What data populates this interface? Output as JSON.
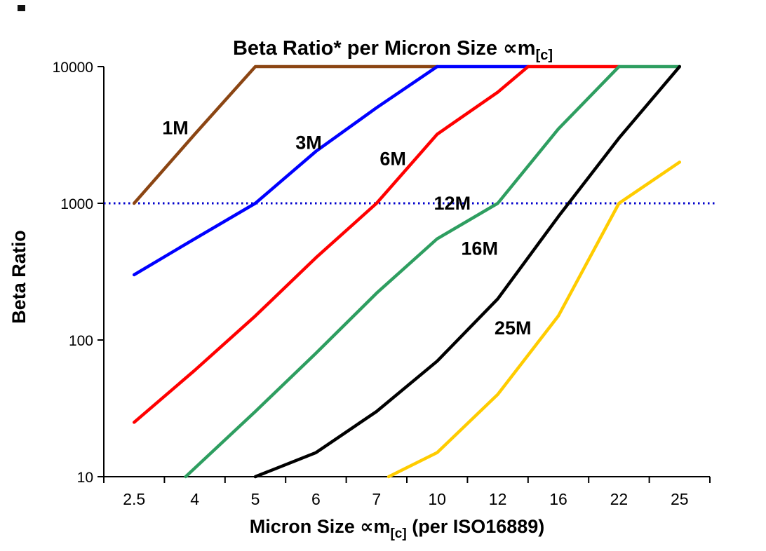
{
  "title": {
    "main": "Beta Ratio* per Micron Size ",
    "symbol": "∝m",
    "sub": "[c]"
  },
  "ylabel": "Beta Ratio",
  "xlabel": {
    "pre": "Micron Size ",
    "symbol": "∝m",
    "sub": "[c]",
    "post": " (per ISO16889)"
  },
  "chart_data": {
    "type": "line",
    "title": "Beta Ratio* per Micron Size ∝m[c]",
    "xlabel": "Micron Size ∝m[c] (per ISO16889)",
    "ylabel": "Beta Ratio",
    "x_categories": [
      "2.5",
      "4",
      "5",
      "6",
      "7",
      "10",
      "12",
      "16",
      "22",
      "25"
    ],
    "y_scale": "log",
    "ylim": [
      10,
      10000
    ],
    "y_ticks": [
      "10",
      "100",
      "1000",
      "10000"
    ],
    "grid": false,
    "legend": "inline-labels",
    "reference_line": {
      "value": 1000,
      "color": "#0000CC",
      "style": "dotted"
    },
    "series": [
      {
        "name": "1M",
        "color": "#8B4513",
        "label_color": "#A0522D",
        "label_at": [
          0.68,
          3200
        ],
        "points": [
          [
            0,
            1000
          ],
          [
            1,
            3200
          ],
          [
            2,
            10000
          ],
          [
            5,
            10000
          ]
        ]
      },
      {
        "name": "3M",
        "color": "#0000FF",
        "label_color": "#0000EE",
        "label_at": [
          2.88,
          2500
        ],
        "points": [
          [
            0,
            300
          ],
          [
            1,
            550
          ],
          [
            2,
            1000
          ],
          [
            3,
            2400
          ],
          [
            4,
            5000
          ],
          [
            5,
            10000
          ],
          [
            6.5,
            10000
          ]
        ]
      },
      {
        "name": "6M",
        "color": "#FF0000",
        "label_color": "#FF0000",
        "label_at": [
          4.27,
          1900
        ],
        "points": [
          [
            0,
            25
          ],
          [
            1,
            60
          ],
          [
            2,
            150
          ],
          [
            3,
            400
          ],
          [
            4,
            1000
          ],
          [
            5,
            3200
          ],
          [
            6,
            6500
          ],
          [
            6.5,
            10000
          ],
          [
            8,
            10000
          ]
        ]
      },
      {
        "name": "12M",
        "color": "#2E9E60",
        "label_color": "#008000",
        "label_at": [
          5.25,
          900
        ],
        "points": [
          [
            0.85,
            10
          ],
          [
            2,
            30
          ],
          [
            3,
            80
          ],
          [
            4,
            220
          ],
          [
            5,
            550
          ],
          [
            6,
            1000
          ],
          [
            7,
            3500
          ],
          [
            8,
            10000
          ],
          [
            9,
            10000
          ]
        ]
      },
      {
        "name": "16M",
        "color": "#000000",
        "label_color": "#000000",
        "label_at": [
          5.7,
          420
        ],
        "points": [
          [
            2,
            10
          ],
          [
            3,
            15
          ],
          [
            4,
            30
          ],
          [
            5,
            70
          ],
          [
            6,
            200
          ],
          [
            7,
            800
          ],
          [
            8,
            3000
          ],
          [
            9,
            10000
          ]
        ]
      },
      {
        "name": "25M",
        "color": "#FFCC00",
        "label_color": "#FFC000",
        "label_at": [
          6.25,
          110
        ],
        "points": [
          [
            4.2,
            10
          ],
          [
            5,
            15
          ],
          [
            6,
            40
          ],
          [
            7,
            150
          ],
          [
            8,
            1000
          ],
          [
            9,
            2000
          ]
        ]
      }
    ]
  }
}
